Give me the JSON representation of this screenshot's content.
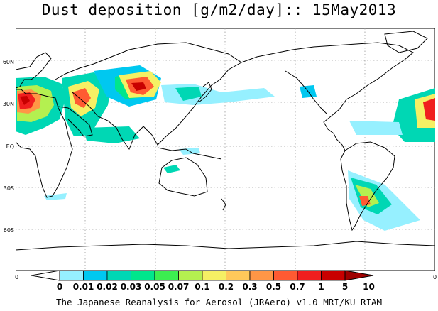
{
  "title": "Dust deposition [g/m2/day]:: 15May2013",
  "lat_labels": [
    "60N",
    "30N",
    "EQ",
    "30S",
    "60S"
  ],
  "lon_end_labels": [
    "0",
    "0"
  ],
  "colorbar": {
    "labels": [
      "0",
      "0.01",
      "0.02",
      "0.03",
      "0.05",
      "0.07",
      "0.1",
      "0.2",
      "0.3",
      "0.5",
      "0.7",
      "1",
      "5",
      "10"
    ],
    "colors": [
      "#ffffff",
      "#96f0ff",
      "#00c8f0",
      "#00d7b4",
      "#00e68c",
      "#3cee50",
      "#b4f050",
      "#f5f064",
      "#ffc85a",
      "#ff9646",
      "#ff5a32",
      "#f01e1e",
      "#c80000",
      "#a00000"
    ]
  },
  "credit": "The Japanese Reanalysis for Aerosol (JRAero) v1.0 MRI/KU_RIAM",
  "icons": [
    "world-coastline-map",
    "colorbar-triangle-arrows"
  ]
}
